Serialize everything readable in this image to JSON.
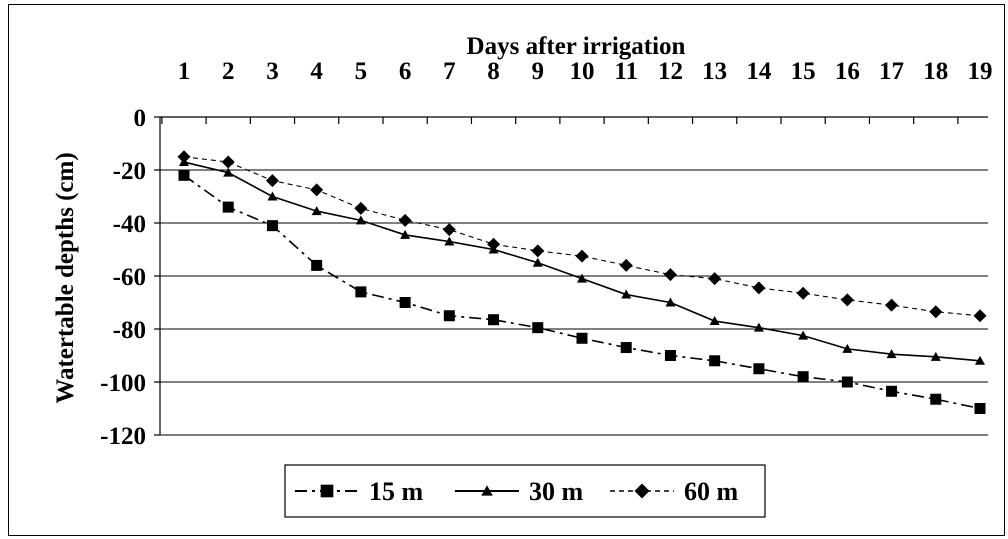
{
  "chart_data": {
    "type": "line",
    "xlabel": "Days after irrigation",
    "ylabel": "Watertable depths (cm)",
    "x": [
      1,
      2,
      3,
      4,
      5,
      6,
      7,
      8,
      9,
      10,
      11,
      12,
      13,
      14,
      15,
      16,
      17,
      18,
      19
    ],
    "x_tick_labels": [
      "1",
      "2",
      "3",
      "4",
      "5",
      "6",
      "7",
      "8",
      "9",
      "10",
      "11",
      "12",
      "13",
      "14",
      "15",
      "16",
      "17",
      "18",
      "19"
    ],
    "ylim": [
      -120,
      0
    ],
    "y_ticks": [
      0,
      -20,
      -40,
      -60,
      -80,
      -100,
      -120
    ],
    "y_tick_labels": [
      "0",
      "-20",
      "-40",
      "-60",
      "-80",
      "-100",
      "-120"
    ],
    "x_axis_position": "top",
    "grid": "horizontal",
    "legend_position": "bottom",
    "series": [
      {
        "name": "15 m",
        "marker": "square",
        "line_style": "dash-dot",
        "values": [
          -22,
          -34,
          -41,
          -56,
          -66,
          -70,
          -75,
          -76.5,
          -79.5,
          -83.5,
          -87,
          -90,
          -92,
          -95,
          -98,
          -100,
          -103.5,
          -106.5,
          -110
        ]
      },
      {
        "name": "30 m",
        "marker": "triangle",
        "line_style": "solid",
        "values": [
          -17,
          -21,
          -30,
          -35.5,
          -39,
          -44.5,
          -47,
          -50,
          -55,
          -61,
          -67,
          -70,
          -77,
          -79.5,
          -82.5,
          -87.5,
          -89.5,
          -90.5,
          -92
        ]
      },
      {
        "name": "60 m",
        "marker": "diamond",
        "line_style": "dashed",
        "values": [
          -15,
          -17,
          -24,
          -27.5,
          -34.5,
          -39,
          -42.5,
          -48,
          -50.5,
          -52.5,
          -56,
          -59.5,
          -61,
          -64.5,
          -66.5,
          -69,
          -71,
          -73.5,
          -75
        ]
      }
    ],
    "colors": {
      "line": "#000000",
      "background": "#ffffff"
    }
  }
}
